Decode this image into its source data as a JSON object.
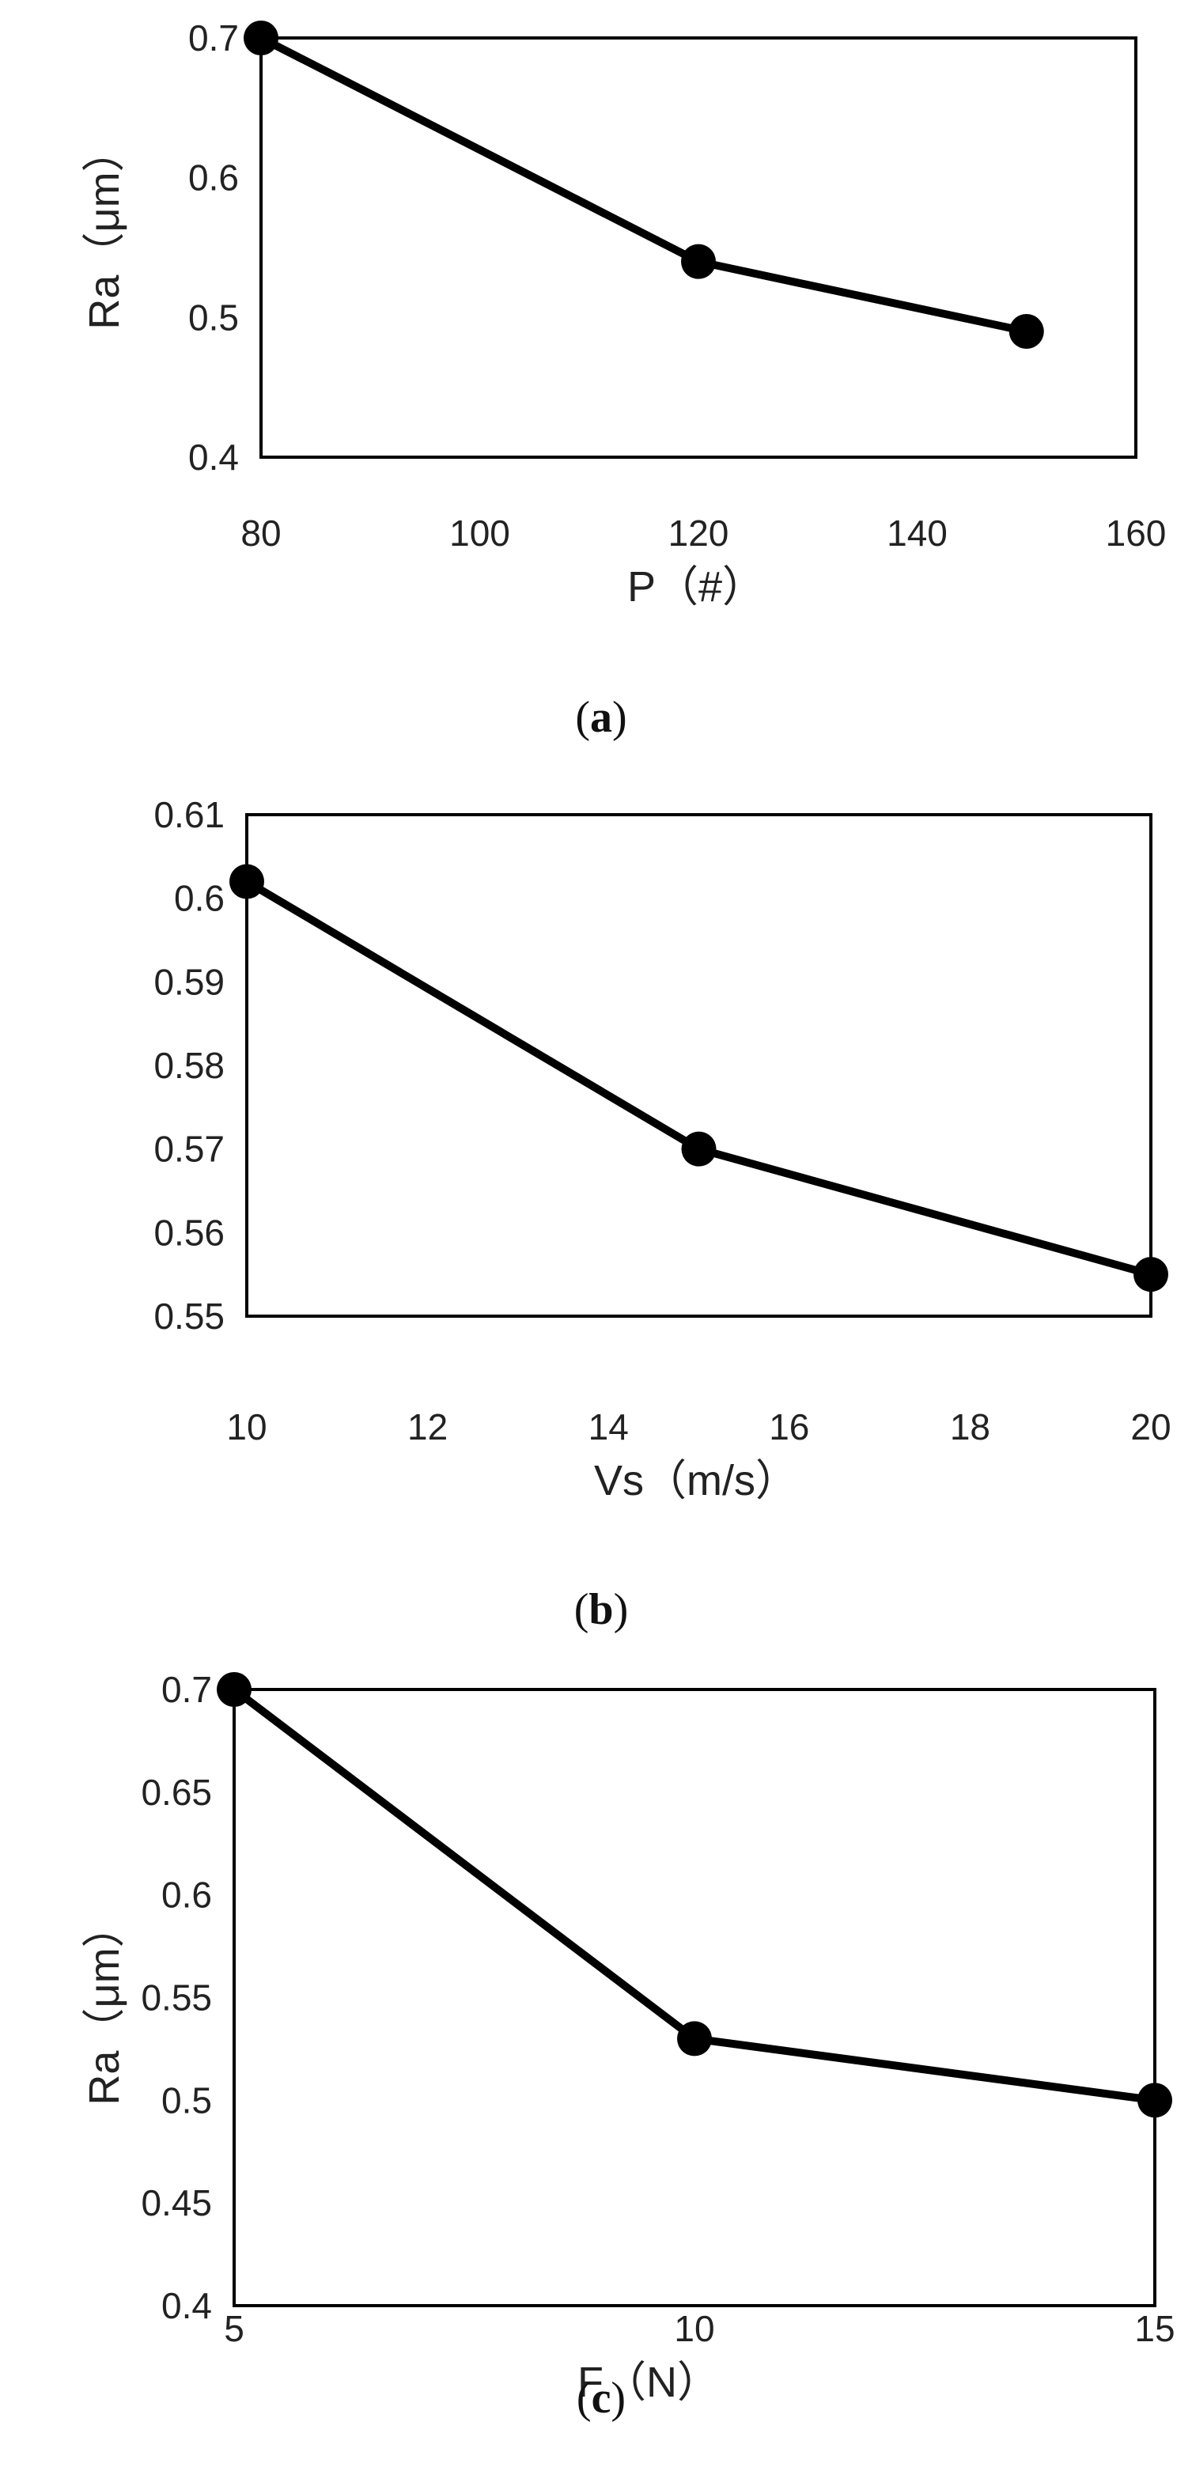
{
  "chart_data": [
    {
      "type": "line",
      "panel": "a",
      "xlabel": "P（#）",
      "ylabel": "Ra（μm）",
      "xlim": [
        80,
        160
      ],
      "ylim": [
        0.4,
        0.7
      ],
      "xticks": [
        "80",
        "100",
        "120",
        "140",
        "160"
      ],
      "yticks": [
        "0.4",
        "0.5",
        "0.6",
        "0.7"
      ],
      "x": [
        80,
        120,
        150
      ],
      "values": [
        0.7,
        0.54,
        0.49
      ],
      "grid": false,
      "caption": {
        "open": "(",
        "letter": "a",
        "close": ")"
      }
    },
    {
      "type": "line",
      "panel": "b",
      "xlabel": "Vs（m/s）",
      "ylabel": "",
      "xlim": [
        10,
        20
      ],
      "ylim": [
        0.55,
        0.61
      ],
      "xticks": [
        "10",
        "12",
        "14",
        "16",
        "18",
        "20"
      ],
      "yticks": [
        "0.55",
        "0.56",
        "0.57",
        "0.58",
        "0.59",
        "0.6",
        "0.61"
      ],
      "x": [
        10,
        15,
        20
      ],
      "values": [
        0.602,
        0.57,
        0.555
      ],
      "grid": false,
      "caption": {
        "open": "(",
        "letter": "b",
        "close": ")"
      }
    },
    {
      "type": "line",
      "panel": "c",
      "xlabel": "F（N）",
      "ylabel": "Ra（μm）",
      "xlim": [
        5,
        15
      ],
      "ylim": [
        0.4,
        0.7
      ],
      "xticks": [
        "5",
        "10",
        "15"
      ],
      "yticks": [
        "0.4",
        "0.45",
        "0.5",
        "0.55",
        "0.6",
        "0.65",
        "0.7"
      ],
      "x": [
        5,
        10,
        15
      ],
      "values": [
        0.7,
        0.53,
        0.5
      ],
      "grid": false,
      "caption": {
        "open": "(",
        "letter": "c",
        "close": ")"
      }
    }
  ]
}
